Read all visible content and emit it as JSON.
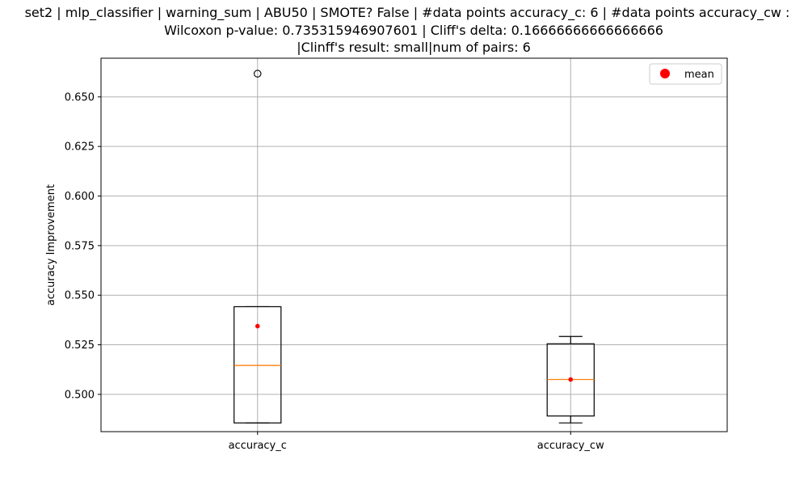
{
  "chart_data": {
    "type": "box",
    "title_lines": [
      "set2 | mlp_classifier | warning_sum | ABU50 | SMOTE? False | #data points accuracy_c: 6 | #data points accuracy_cw :",
      "Wilcoxon p-value: 0.735315946907601 | Cliff's delta: 0.16666666666666666",
      "|Clinff's result: small|num of pairs: 6"
    ],
    "xlabel": "",
    "ylabel": "accuracy Improvement",
    "ylim": [
      0.4812,
      0.6695
    ],
    "yticks": [
      0.5,
      0.525,
      0.55,
      0.575,
      0.6,
      0.625,
      0.65
    ],
    "ytick_labels": [
      "0.500",
      "0.525",
      "0.550",
      "0.575",
      "0.600",
      "0.625",
      "0.650"
    ],
    "grid": true,
    "legend": {
      "position": "top-right",
      "entries": [
        {
          "label": "mean",
          "color": "#ff0000"
        }
      ]
    },
    "categories": [
      "accuracy_c",
      "accuracy_cw"
    ],
    "boxes": [
      {
        "name": "accuracy_c",
        "whisker_low": 0.4856,
        "q1": 0.4856,
        "median": 0.5146,
        "q3": 0.5442,
        "whisker_high": 0.5442,
        "mean": 0.5344,
        "outliers": [
          0.6617
        ]
      },
      {
        "name": "accuracy_cw",
        "whisker_low": 0.4856,
        "q1": 0.4891,
        "median": 0.5075,
        "q3": 0.5255,
        "whisker_high": 0.5292,
        "mean": 0.5075,
        "outliers": []
      }
    ],
    "colors": {
      "box": "#000000",
      "median": "#ff7f0e",
      "mean": "#ff0000",
      "grid": "#b0b0b0",
      "outlier_edge": "#000000"
    }
  }
}
